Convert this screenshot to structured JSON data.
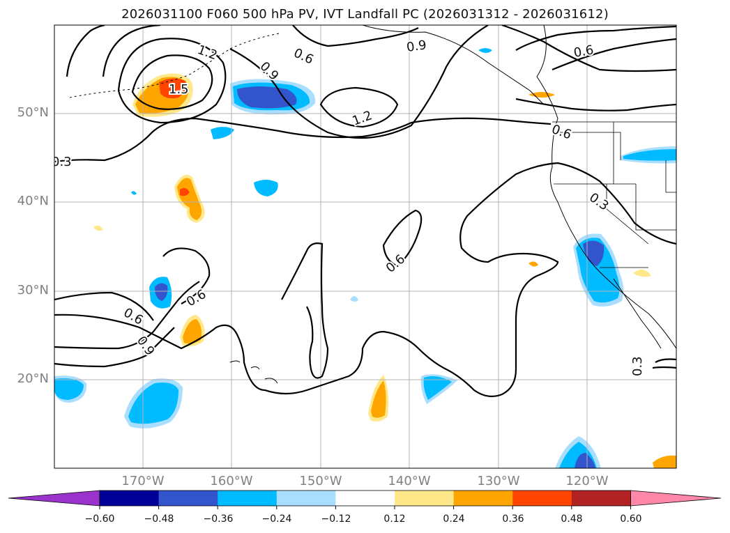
{
  "title": "2026031100 F060 500 hPa PV, IVT Landfall PC (2026031312 - 2026031612)",
  "lat_labels": [
    "50°N",
    "40°N",
    "30°N",
    "20°N"
  ],
  "lon_labels": [
    "170°W",
    "160°W",
    "150°W",
    "140°W",
    "130°W",
    "120°W"
  ],
  "contour_labels": [
    "1.2",
    "1.5",
    "0.9",
    "0.6",
    "0.9",
    "0.6",
    "1.2",
    "0.6",
    "0.3",
    "0.3",
    "0.6",
    "0.6",
    "0.6",
    "0.9",
    "0.3"
  ],
  "colorbar": {
    "ticks": [
      "−0.60",
      "−0.48",
      "−0.36",
      "−0.24",
      "−0.12",
      "0.12",
      "0.24",
      "0.36",
      "0.48",
      "0.60"
    ],
    "colors": [
      "#9933cc",
      "#000099",
      "#3355cc",
      "#00bbff",
      "#aadeff",
      "#ffffff",
      "#ffe88a",
      "#ffa500",
      "#ff4500",
      "#b22222",
      "#ff88aa"
    ]
  },
  "palette": {
    "neg_strong": "#3355cc",
    "neg_mid": "#00bbff",
    "neg_weak": "#aadeff",
    "pos_weak": "#ffe88a",
    "pos_mid": "#ffa500",
    "pos_strong": "#ff4500"
  }
}
